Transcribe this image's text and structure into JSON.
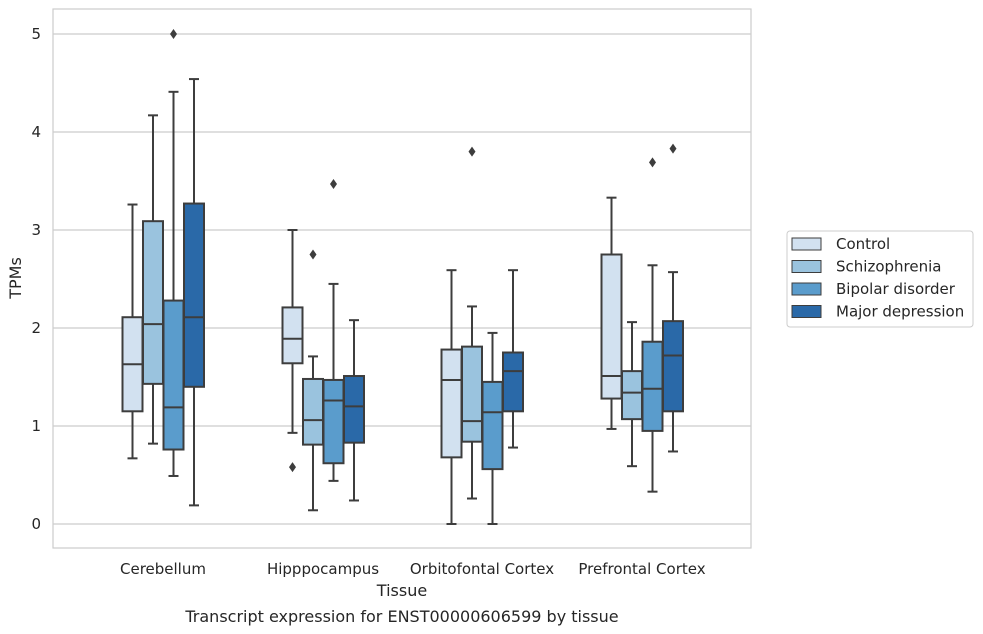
{
  "chart_data": {
    "type": "box",
    "title": "",
    "caption": "Transcript expression for ENST00000606599 by tissue",
    "xlabel": "Tissue",
    "ylabel": "TPMs",
    "ylim": [
      -0.25,
      5.25
    ],
    "yticks": [
      0,
      1,
      2,
      3,
      4,
      5
    ],
    "grid": "horizontal",
    "legend_position": "right",
    "categories": [
      "Cerebellum",
      "Hipppocampus",
      "Orbitofontal Cortex",
      "Prefrontal Cortex"
    ],
    "series": [
      {
        "name": "Control",
        "color": "#d2e1f0",
        "boxes": [
          {
            "whisker_low": 0.67,
            "q1": 1.15,
            "median": 1.63,
            "q3": 2.11,
            "whisker_high": 3.26,
            "outliers": []
          },
          {
            "whisker_low": 0.93,
            "q1": 1.64,
            "median": 1.89,
            "q3": 2.21,
            "whisker_high": 3.0,
            "outliers": [
              0.58
            ]
          },
          {
            "whisker_low": 0.0,
            "q1": 0.68,
            "median": 1.47,
            "q3": 1.78,
            "whisker_high": 2.59,
            "outliers": []
          },
          {
            "whisker_low": 0.97,
            "q1": 1.28,
            "median": 1.51,
            "q3": 2.75,
            "whisker_high": 3.33,
            "outliers": []
          }
        ]
      },
      {
        "name": "Schizophrenia",
        "color": "#9ac3de",
        "boxes": [
          {
            "whisker_low": 0.82,
            "q1": 1.43,
            "median": 2.04,
            "q3": 3.09,
            "whisker_high": 4.17,
            "outliers": []
          },
          {
            "whisker_low": 0.14,
            "q1": 0.81,
            "median": 1.06,
            "q3": 1.48,
            "whisker_high": 1.71,
            "outliers": [
              2.75
            ]
          },
          {
            "whisker_low": 0.26,
            "q1": 0.84,
            "median": 1.05,
            "q3": 1.81,
            "whisker_high": 2.22,
            "outliers": [
              3.8
            ]
          },
          {
            "whisker_low": 0.59,
            "q1": 1.07,
            "median": 1.34,
            "q3": 1.56,
            "whisker_high": 2.06,
            "outliers": []
          }
        ]
      },
      {
        "name": "Bipolar disorder",
        "color": "#5a9ccc",
        "boxes": [
          {
            "whisker_low": 0.49,
            "q1": 0.76,
            "median": 1.19,
            "q3": 2.28,
            "whisker_high": 4.41,
            "outliers": [
              5.0
            ]
          },
          {
            "whisker_low": 0.44,
            "q1": 0.62,
            "median": 1.26,
            "q3": 1.47,
            "whisker_high": 2.45,
            "outliers": [
              3.47
            ]
          },
          {
            "whisker_low": 0.0,
            "q1": 0.56,
            "median": 1.14,
            "q3": 1.45,
            "whisker_high": 1.95,
            "outliers": []
          },
          {
            "whisker_low": 0.33,
            "q1": 0.95,
            "median": 1.38,
            "q3": 1.86,
            "whisker_high": 2.64,
            "outliers": [
              3.69
            ]
          }
        ]
      },
      {
        "name": "Major depression",
        "color": "#2a69a8",
        "boxes": [
          {
            "whisker_low": 0.19,
            "q1": 1.4,
            "median": 2.11,
            "q3": 3.27,
            "whisker_high": 4.54,
            "outliers": []
          },
          {
            "whisker_low": 0.24,
            "q1": 0.83,
            "median": 1.2,
            "q3": 1.51,
            "whisker_high": 2.08,
            "outliers": []
          },
          {
            "whisker_low": 0.78,
            "q1": 1.15,
            "median": 1.56,
            "q3": 1.75,
            "whisker_high": 2.59,
            "outliers": []
          },
          {
            "whisker_low": 0.74,
            "q1": 1.15,
            "median": 1.72,
            "q3": 2.07,
            "whisker_high": 2.57,
            "outliers": [
              3.83
            ]
          }
        ]
      }
    ]
  }
}
